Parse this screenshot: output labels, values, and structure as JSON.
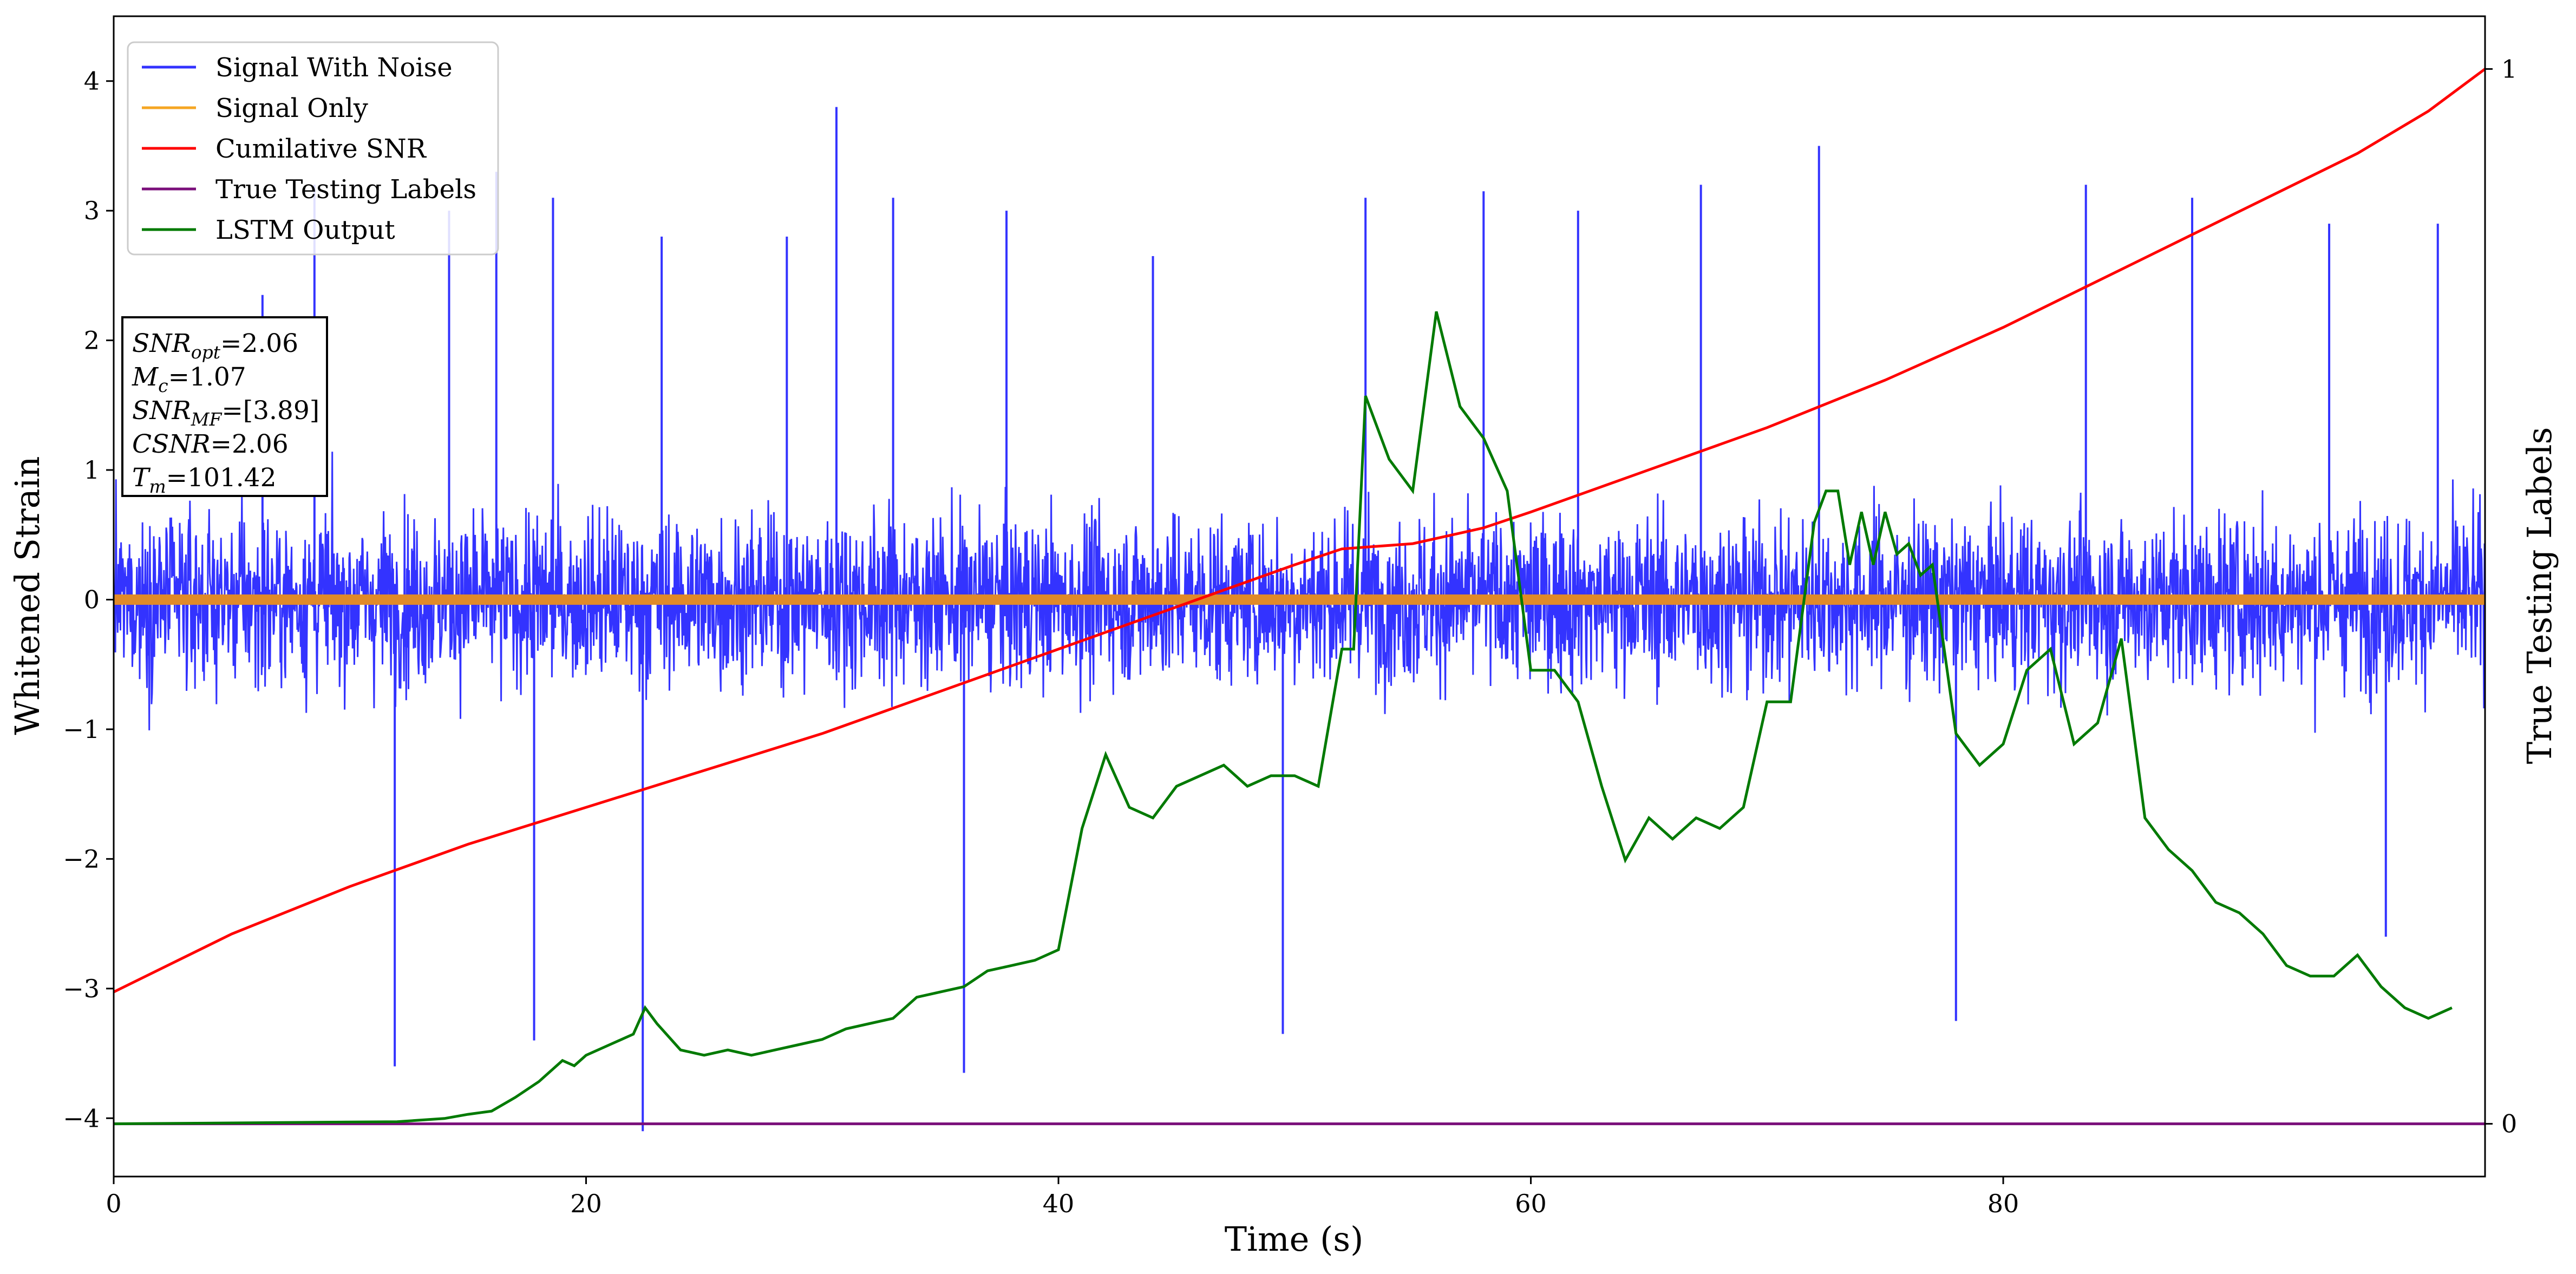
{
  "chart_data": {
    "type": "line",
    "xlabel": "Time (s)",
    "ylabel": "Whitened Strain",
    "y2label": "True Testing Labels",
    "xlim": [
      0,
      100.4
    ],
    "ylim": [
      -4.45,
      4.5
    ],
    "y2lim": [
      -0.05,
      1.05
    ],
    "x_ticks": [
      0,
      20,
      40,
      60,
      80
    ],
    "y_ticks": [
      -4,
      -3,
      -2,
      -1,
      0,
      1,
      2,
      3,
      4
    ],
    "y2_ticks": [
      0,
      1
    ],
    "grid": false,
    "legend_placement": "upper-left",
    "series": [
      {
        "name": "Signal With Noise",
        "axis": "left",
        "color": "#3333ff",
        "description": "dense whitened noise, roughly ±1.3 envelope with spikes",
        "envelope_upper": 1.3,
        "envelope_lower": -1.35,
        "spikes": [
          [
            6.3,
            2.35
          ],
          [
            8.5,
            3.2
          ],
          [
            14.2,
            3.0
          ],
          [
            16.2,
            3.3
          ],
          [
            18.6,
            3.1
          ],
          [
            22.4,
            -4.1
          ],
          [
            23.2,
            2.8
          ],
          [
            28.5,
            2.8
          ],
          [
            30.6,
            3.8
          ],
          [
            33.0,
            3.1
          ],
          [
            36.0,
            -3.65
          ],
          [
            37.8,
            3.0
          ],
          [
            44.0,
            2.65
          ],
          [
            49.5,
            -3.35
          ],
          [
            53.0,
            3.1
          ],
          [
            58.0,
            3.15
          ],
          [
            62.0,
            3.0
          ],
          [
            67.2,
            3.2
          ],
          [
            72.2,
            3.5
          ],
          [
            78.0,
            -3.25
          ],
          [
            83.5,
            3.2
          ],
          [
            88.0,
            3.1
          ],
          [
            93.8,
            2.9
          ],
          [
            98.4,
            2.9
          ],
          [
            96.2,
            -2.6
          ],
          [
            11.9,
            -3.6
          ],
          [
            17.8,
            -3.4
          ]
        ]
      },
      {
        "name": "Signal Only",
        "axis": "left",
        "color": "#f5a623",
        "x": [
          0,
          100.4
        ],
        "y": [
          0,
          0
        ],
        "amplitude": 0.04
      },
      {
        "name": "Cumilative SNR",
        "axis": "right",
        "color": "#ff0000",
        "x": [
          0,
          5,
          10,
          15,
          20,
          25,
          30,
          35,
          40,
          45,
          50,
          52,
          55,
          58,
          60,
          65,
          70,
          75,
          80,
          85,
          90,
          95,
          98,
          100.4
        ],
        "y": [
          0.125,
          0.18,
          0.225,
          0.265,
          0.3,
          0.335,
          0.37,
          0.41,
          0.45,
          0.49,
          0.53,
          0.545,
          0.55,
          0.565,
          0.58,
          0.62,
          0.66,
          0.705,
          0.755,
          0.81,
          0.865,
          0.92,
          0.96,
          1.0
        ]
      },
      {
        "name": "True Testing Labels",
        "axis": "right",
        "color": "#7a0e7a",
        "x": [
          0,
          100.4
        ],
        "y": [
          0,
          0
        ]
      },
      {
        "name": "LSTM Output",
        "axis": "right",
        "color": "#007a00",
        "x": [
          0,
          12,
          14,
          15,
          16,
          17,
          18,
          19,
          19.5,
          20,
          21,
          22,
          22.5,
          23,
          24,
          25,
          26,
          27,
          28,
          29,
          30,
          31,
          32,
          33,
          34,
          35,
          36,
          37,
          38,
          39,
          40,
          41,
          42,
          43,
          44,
          45,
          46,
          47,
          48,
          49,
          50,
          51,
          52,
          52.5,
          53,
          53.5,
          54,
          55,
          56,
          57,
          58,
          59,
          60,
          61,
          62,
          63,
          64,
          65,
          66,
          67,
          68,
          69,
          70,
          71,
          72,
          72.5,
          73,
          73.5,
          74,
          74.5,
          75,
          75.5,
          76,
          76.5,
          77,
          78,
          79,
          80,
          81,
          82,
          83,
          84,
          85,
          86,
          87,
          88,
          89,
          90,
          91,
          92,
          93,
          94,
          95,
          96,
          97,
          98,
          99
        ],
        "y": [
          0.0,
          0.002,
          0.005,
          0.009,
          0.012,
          0.025,
          0.04,
          0.06,
          0.055,
          0.065,
          0.075,
          0.085,
          0.11,
          0.095,
          0.07,
          0.065,
          0.07,
          0.065,
          0.07,
          0.075,
          0.08,
          0.09,
          0.095,
          0.1,
          0.12,
          0.125,
          0.13,
          0.145,
          0.15,
          0.155,
          0.165,
          0.28,
          0.35,
          0.3,
          0.29,
          0.32,
          0.33,
          0.34,
          0.32,
          0.33,
          0.33,
          0.32,
          0.45,
          0.45,
          0.69,
          0.66,
          0.63,
          0.6,
          0.77,
          0.68,
          0.65,
          0.6,
          0.43,
          0.43,
          0.4,
          0.32,
          0.25,
          0.29,
          0.27,
          0.29,
          0.28,
          0.3,
          0.4,
          0.4,
          0.57,
          0.6,
          0.6,
          0.53,
          0.58,
          0.53,
          0.58,
          0.54,
          0.55,
          0.52,
          0.53,
          0.37,
          0.34,
          0.36,
          0.43,
          0.45,
          0.36,
          0.38,
          0.46,
          0.29,
          0.26,
          0.24,
          0.21,
          0.2,
          0.18,
          0.15,
          0.14,
          0.14,
          0.16,
          0.13,
          0.11,
          0.1,
          0.11
        ]
      }
    ],
    "annotation": {
      "lines": [
        {
          "name": "SNR",
          "sub": "opt",
          "value": "=2.06"
        },
        {
          "name": "M",
          "sub": "c",
          "value": "=1.07"
        },
        {
          "name": "SNR",
          "sub": "MF",
          "value": "=[3.89]"
        },
        {
          "name": "CSNR",
          "sub": "",
          "value": "=2.06"
        },
        {
          "name": "T",
          "sub": "m",
          "value": "=101.42"
        }
      ]
    }
  }
}
